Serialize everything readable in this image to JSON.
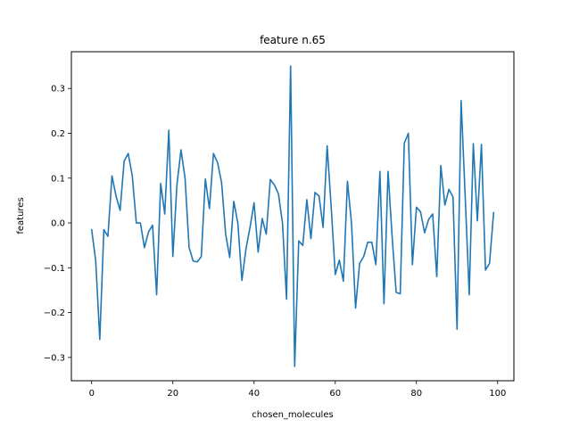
{
  "chart_data": {
    "type": "line",
    "title": "feature n.65",
    "xlabel": "chosen_molecules",
    "ylabel": "features",
    "xlim": [
      -5,
      104
    ],
    "ylim": [
      -0.352,
      0.382
    ],
    "xticks": [
      0,
      20,
      40,
      60,
      80,
      100
    ],
    "yticks": [
      -0.3,
      -0.2,
      -0.1,
      0.0,
      0.1,
      0.2,
      0.3
    ],
    "ytick_labels": [
      "−0.3",
      "−0.2",
      "−0.1",
      "0.0",
      "0.1",
      "0.2",
      "0.3"
    ],
    "grid": false,
    "color": "#1f77b4",
    "series": [
      {
        "x": [
          0,
          1,
          2,
          3,
          4,
          5,
          6,
          7,
          8,
          9,
          10,
          11,
          12,
          13,
          14,
          15,
          16,
          17,
          18,
          19,
          20,
          21,
          22,
          23,
          24,
          25,
          26,
          27,
          28,
          29,
          30,
          31,
          32,
          33,
          34,
          35,
          36,
          37,
          38,
          39,
          40,
          41,
          42,
          43,
          44,
          45,
          46,
          47,
          48,
          49,
          50,
          51,
          52,
          53,
          54,
          55,
          56,
          57,
          58,
          59,
          60,
          61,
          62,
          63,
          64,
          65,
          66,
          67,
          68,
          69,
          70,
          71,
          72,
          73,
          74,
          75,
          76,
          77,
          78,
          79,
          80,
          81,
          82,
          83,
          84,
          85,
          86,
          87,
          88,
          89,
          90,
          91,
          92,
          93,
          94,
          95,
          96,
          97,
          98,
          99
        ],
        "values": [
          -0.015,
          -0.085,
          -0.26,
          -0.015,
          -0.03,
          0.105,
          0.06,
          0.028,
          0.138,
          0.155,
          0.105,
          0.0,
          0.0,
          -0.055,
          -0.02,
          -0.005,
          -0.16,
          0.088,
          0.02,
          0.207,
          -0.075,
          0.085,
          0.163,
          0.1,
          -0.055,
          -0.085,
          -0.087,
          -0.075,
          0.098,
          0.032,
          0.155,
          0.135,
          0.09,
          -0.025,
          -0.077,
          0.048,
          0.0,
          -0.128,
          -0.058,
          -0.01,
          0.045,
          -0.065,
          0.01,
          -0.025,
          0.097,
          0.085,
          0.065,
          0.0,
          -0.17,
          0.35,
          -0.32,
          -0.04,
          -0.05,
          0.052,
          -0.035,
          0.068,
          0.06,
          -0.01,
          0.172,
          0.035,
          -0.115,
          -0.083,
          -0.13,
          0.093,
          0.0,
          -0.19,
          -0.09,
          -0.075,
          -0.043,
          -0.043,
          -0.093,
          0.115,
          -0.18,
          0.115,
          -0.03,
          -0.155,
          -0.158,
          0.178,
          0.2,
          -0.093,
          0.035,
          0.025,
          -0.022,
          0.008,
          0.02,
          -0.12,
          0.128,
          0.04,
          0.075,
          0.058,
          -0.237,
          0.273,
          0.06,
          -0.16,
          0.177,
          0.005,
          0.175,
          -0.105,
          -0.09,
          0.023
        ]
      }
    ]
  }
}
